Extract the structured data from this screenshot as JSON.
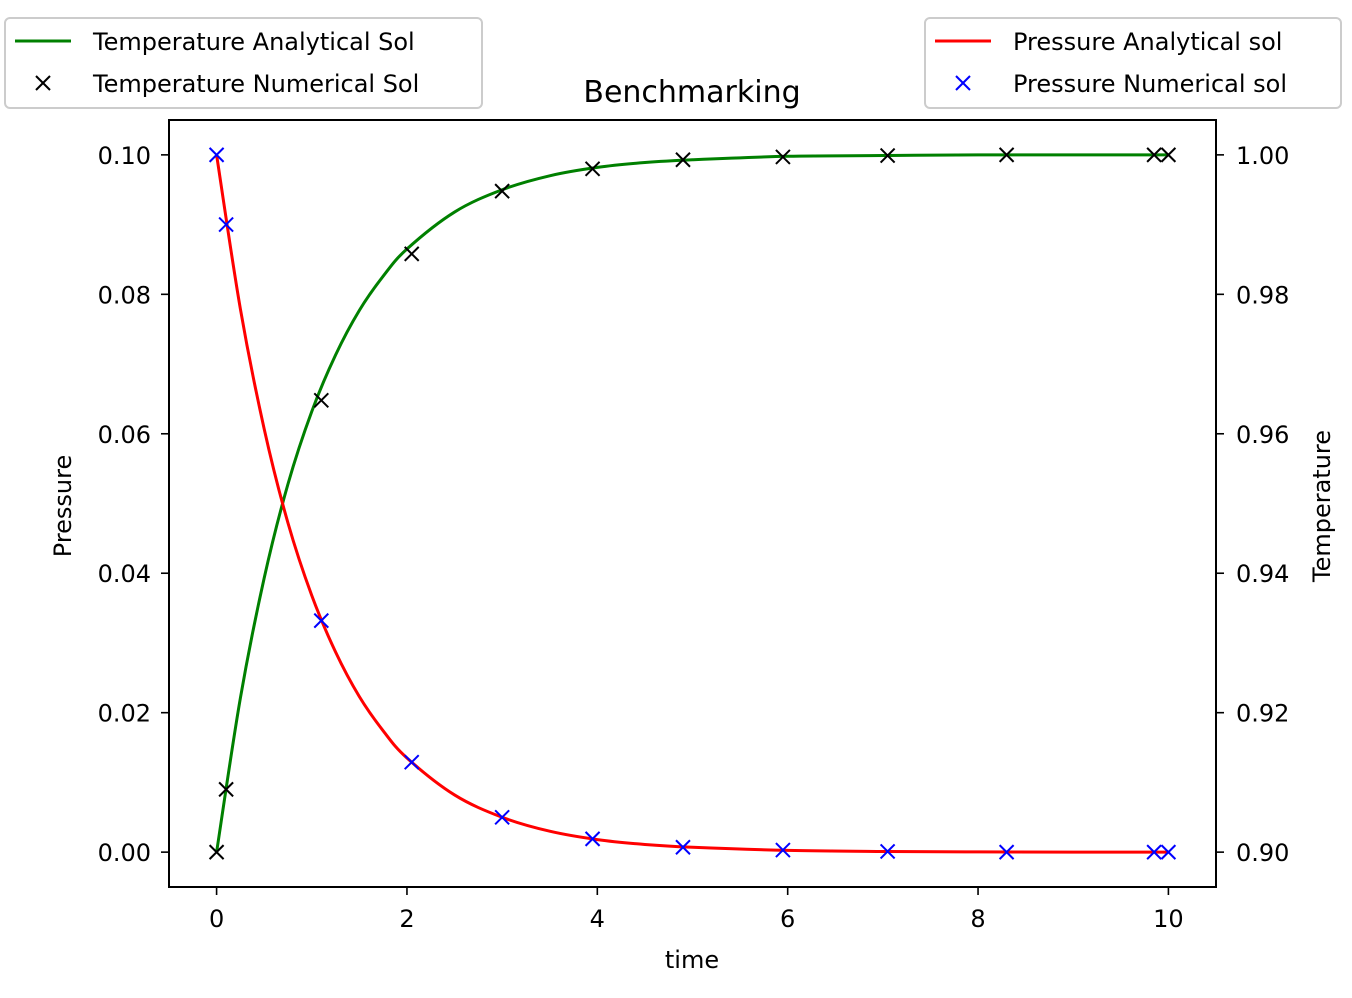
{
  "chart_data": {
    "type": "line",
    "title": "Benchmarking",
    "xlabel": "time",
    "ylabel_left": "Pressure",
    "ylabel_right": "Temperature",
    "xlim": [
      -0.5,
      10.5
    ],
    "ylim_left": [
      -0.005,
      0.105
    ],
    "ylim_right": [
      0.895,
      1.005
    ],
    "x_ticks": [
      "0",
      "2",
      "4",
      "6",
      "8",
      "10"
    ],
    "y_left_ticks": [
      "0.00",
      "0.02",
      "0.04",
      "0.06",
      "0.08",
      "0.10"
    ],
    "y_right_ticks": [
      "0.90",
      "0.92",
      "0.94",
      "0.96",
      "0.98",
      "1.00"
    ],
    "grid": false,
    "colors": {
      "temperature_line": "#008000",
      "temperature_markers": "#000000",
      "pressure_line": "#ff0000",
      "pressure_markers": "#0000ff"
    },
    "series": [
      {
        "name": "Temperature Analytical Sol",
        "axis": "right",
        "style": "line",
        "x": [
          0,
          0.25,
          0.5,
          0.75,
          1,
          1.25,
          1.5,
          1.75,
          2,
          2.5,
          3,
          3.5,
          4,
          4.5,
          5,
          6,
          7,
          8,
          9,
          10
        ],
        "y": [
          0.9,
          0.9221,
          0.9393,
          0.9528,
          0.9632,
          0.9713,
          0.9777,
          0.9826,
          0.9865,
          0.9918,
          0.995,
          0.997,
          0.9982,
          0.9989,
          0.9993,
          0.9998,
          0.9999,
          1.0,
          1.0,
          1.0
        ]
      },
      {
        "name": "Temperature Numerical Sol",
        "axis": "right",
        "style": "marker",
        "x": [
          0,
          0.1,
          1.1,
          2.05,
          3.0,
          3.95,
          4.9,
          5.95,
          7.05,
          8.3,
          9.85,
          10
        ],
        "y": [
          0.9,
          0.909,
          0.9648,
          0.9858,
          0.9948,
          0.998,
          0.9993,
          0.9997,
          0.9999,
          1.0,
          1.0,
          1.0
        ]
      },
      {
        "name": "Pressure Analytical sol",
        "axis": "left",
        "style": "line",
        "x": [
          0,
          0.25,
          0.5,
          0.75,
          1,
          1.25,
          1.5,
          1.75,
          2,
          2.5,
          3,
          3.5,
          4,
          4.5,
          5,
          6,
          7,
          8,
          9,
          10
        ],
        "y": [
          0.1,
          0.0779,
          0.0607,
          0.0472,
          0.0368,
          0.0287,
          0.0223,
          0.0174,
          0.0135,
          0.0082,
          0.005,
          0.003,
          0.0018,
          0.0011,
          0.0007,
          0.00025,
          9e-05,
          3e-05,
          1e-05,
          0.0
        ]
      },
      {
        "name": "Pressure Numerical sol",
        "axis": "left",
        "style": "marker",
        "x": [
          0,
          0.1,
          1.1,
          2.05,
          3.0,
          3.95,
          4.9,
          5.95,
          7.05,
          8.3,
          9.85,
          10
        ],
        "y": [
          0.1,
          0.09,
          0.0332,
          0.0129,
          0.005,
          0.0019,
          0.0007,
          0.0003,
          0.0001,
          0.0,
          0.0,
          0.0
        ]
      }
    ],
    "legends": [
      {
        "placement": "top-left",
        "entries": [
          "Temperature Analytical Sol",
          "Temperature Numerical Sol"
        ]
      },
      {
        "placement": "top-right",
        "entries": [
          "Pressure Analytical sol",
          "Pressure Numerical sol"
        ]
      }
    ]
  }
}
